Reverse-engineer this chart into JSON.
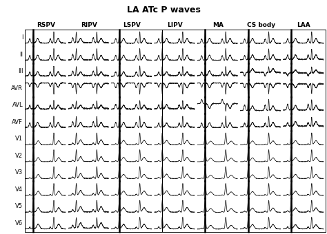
{
  "title": "LA ATc P waves",
  "columns": [
    "RSPV",
    "RIPV",
    "LSPV",
    "LIPV",
    "MA",
    "CS body",
    "LAA"
  ],
  "rows": [
    "I",
    "II",
    "III",
    "AVR",
    "AVL",
    "AVF",
    "V1",
    "V2",
    "V3",
    "V4",
    "V5",
    "V6"
  ],
  "background_color": "#e8e8e8",
  "line_color": "#1a1a1a",
  "title_fontsize": 9,
  "label_fontsize": 6.5,
  "row_label_fontsize": 6,
  "fig_width": 4.74,
  "fig_height": 3.4,
  "dpi": 100
}
